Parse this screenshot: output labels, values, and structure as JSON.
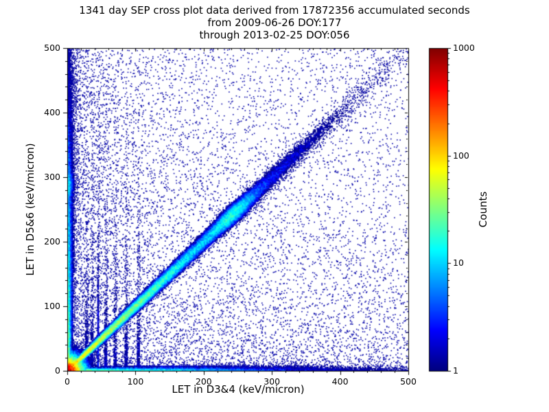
{
  "title": {
    "line1": "1341 day SEP cross plot data derived from 17872356 accumulated seconds",
    "line2": "from 2009-06-26 DOY:177",
    "line3": "through 2013-02-25 DOY:056"
  },
  "chart_data": {
    "type": "heatmap",
    "title": "1341 day SEP cross plot data derived from 17872356 accumulated seconds from 2009-06-26 DOY:177 through 2013-02-25 DOY:056",
    "xlabel": "LET in D3&4 (keV/micron)",
    "ylabel": "LET in D5&6 (keV/micron)",
    "xlim": [
      0,
      500
    ],
    "ylim": [
      0,
      500
    ],
    "x_ticks": [
      0,
      100,
      200,
      300,
      400,
      500
    ],
    "y_ticks": [
      0,
      100,
      200,
      300,
      400,
      500
    ],
    "minor_tick_step": 20,
    "grid": false,
    "colorbar": {
      "label": "Counts",
      "scale": "log",
      "range": [
        1,
        1000
      ],
      "ticks": [
        1,
        10,
        100,
        1000
      ],
      "colormap": "jet",
      "position": "right"
    },
    "features": [
      "intense hot core at origin (LET < ~15 keV/micron in both detectors) reaching ~1000 counts (red/maroon)",
      "coincidence diagonal band y = x from origin to ~400 keV/micron, cyan/green near origin, with a denser blob near (245,245)",
      "dense band hugging the x-axis across the full LET range",
      "dense column hugging the y-axis up to 500 keV/micron with a small enhancement near y = 290",
      "faint vertical streaks near x = 28-105 keV/micron extending upward",
      "sparse dark-blue single-count background scatter, denser above the diagonal and toward low LET"
    ],
    "density_model": {
      "grid_step": 2,
      "noise": 0.35,
      "components": [
        {
          "kind": "radial",
          "amp": 3.1,
          "falloff": 13
        },
        {
          "kind": "diagonal",
          "amp": 2.0,
          "along_falloff": 190,
          "width0": 5,
          "width_growth": 22,
          "sharp": 1.6,
          "bump": {
            "center": 245,
            "sigma": 28,
            "amp": 0.5
          }
        },
        {
          "kind": "band_x",
          "amp": 1.6,
          "falloff": 300,
          "width0": 5,
          "width_growth": 60,
          "sharp": 1.6
        },
        {
          "kind": "band_y",
          "amp": 1.7,
          "falloff": 330,
          "width0": 5,
          "width_growth": 60,
          "sharp": 1.6,
          "bump": {
            "center": 290,
            "sigma": 15,
            "amp": 0.35
          }
        },
        {
          "kind": "vstreaks",
          "xs": [
            28,
            36,
            45,
            56,
            70,
            86,
            104
          ],
          "amp": 0.5,
          "y_falloff": 330,
          "width": 1.8
        }
      ]
    },
    "scatter": {
      "seed": 177,
      "count": 12500,
      "mixes": [
        {
          "p": 0.46,
          "x_pow": 3.0,
          "y_pow": 1.15
        },
        {
          "p": 0.36,
          "x_pow": 1.15,
          "y_pow": 3.0
        },
        {
          "p": 0.18,
          "x_pow": 1.6,
          "y_pow": 1.6
        }
      ]
    }
  }
}
